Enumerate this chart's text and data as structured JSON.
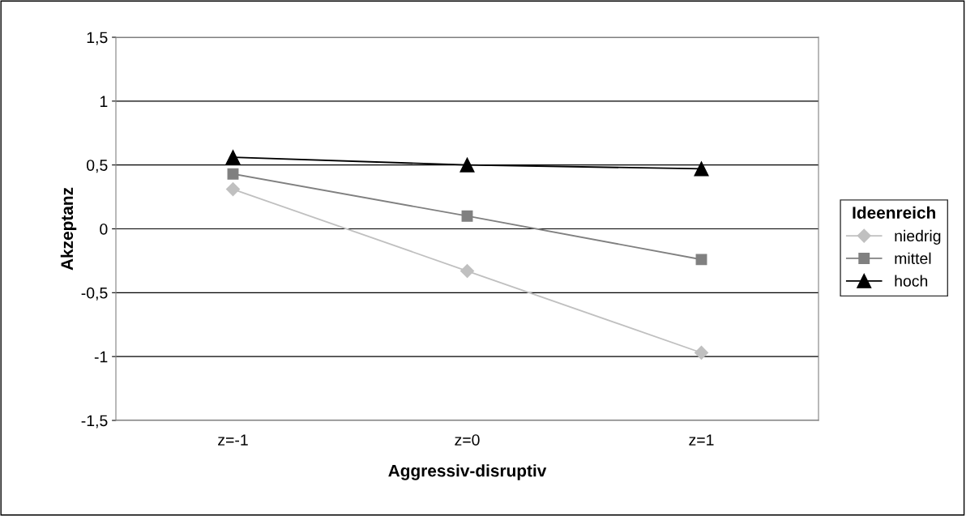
{
  "chart_data": {
    "type": "line",
    "xlabel": "Aggressiv-disruptiv",
    "ylabel": "Akzeptanz",
    "legend_title": "Ideenreich",
    "categories": [
      "z=-1",
      "z=0",
      "z=1"
    ],
    "series": [
      {
        "name": "niedrig",
        "color": "#c0c0c0",
        "marker": "diamond",
        "values": [
          0.31,
          -0.33,
          -0.97
        ]
      },
      {
        "name": "mittel",
        "color": "#808080",
        "marker": "square",
        "values": [
          0.43,
          0.1,
          -0.24
        ]
      },
      {
        "name": "hoch",
        "color": "#000000",
        "marker": "triangle",
        "values": [
          0.56,
          0.5,
          0.47
        ]
      }
    ],
    "ylim": [
      -1.5,
      1.5
    ],
    "yticks": [
      {
        "value": -1.5,
        "label": "-1,5"
      },
      {
        "value": -1,
        "label": "-1"
      },
      {
        "value": -0.5,
        "label": "-0,5"
      },
      0,
      {
        "value": 0.5,
        "label": "0,5"
      },
      1,
      {
        "value": 1.5,
        "label": "1,5"
      }
    ],
    "grid": "y",
    "legend": "right",
    "line_style": "solid"
  }
}
